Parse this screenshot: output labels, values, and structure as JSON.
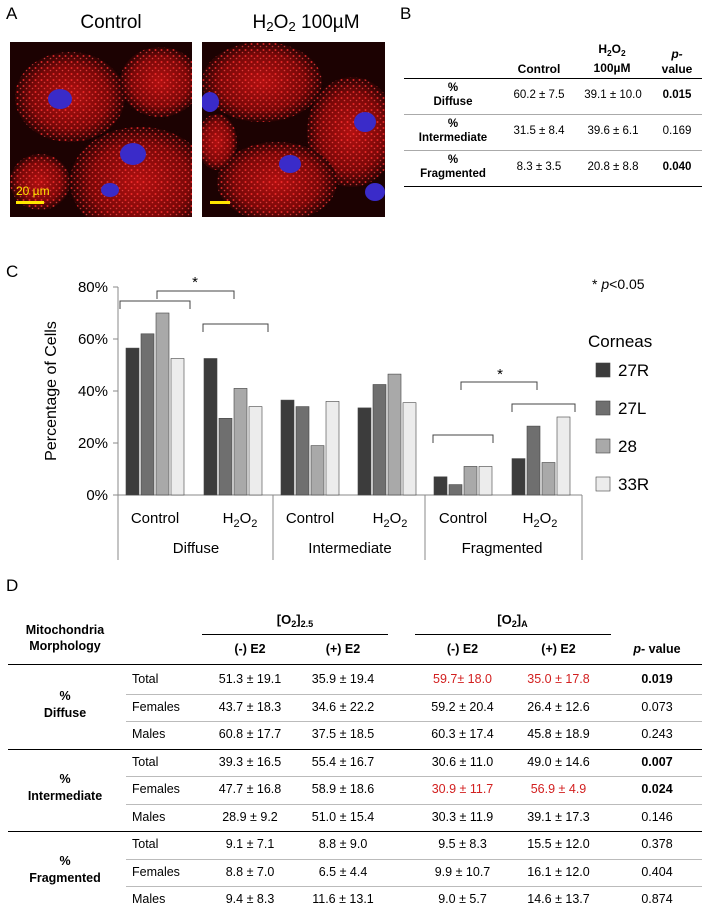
{
  "panelA": {
    "letter": "A",
    "control_title": "Control",
    "h2o2_title_main": "H",
    "h2o2_title_sub1": "2",
    "h2o2_title_o": "O",
    "h2o2_title_sub2": "2",
    "h2o2_title_conc": " 100µM",
    "scale_label": "20 µm"
  },
  "panelB": {
    "letter": "B",
    "headers": {
      "control": "Control",
      "h2o2_line1_H": "H",
      "h2o2_line1_sub": "2",
      "h2o2_line1_O": "O",
      "h2o2_line1_sub2": "2",
      "h2o2_line2": "100µM",
      "p_line1": "p-",
      "p_line2": "value"
    },
    "rows": [
      {
        "label1": "%",
        "label2": "Diffuse",
        "control": "60.2 ± 7.5",
        "h2o2": "39.1 ± 10.0",
        "p": "0.015"
      },
      {
        "label1": "%",
        "label2": "Intermediate",
        "control": "31.5 ± 8.4",
        "h2o2": "39.6 ± 6.1",
        "p": "0.169"
      },
      {
        "label1": "%",
        "label2": "Fragmented",
        "control": "8.3 ± 3.5",
        "h2o2": "20.8 ± 8.8",
        "p": "0.040"
      }
    ]
  },
  "panelC": {
    "letter": "C",
    "significance_note_star": "* ",
    "significance_note_p": "p",
    "significance_note_rest": "<0.05",
    "star": "*"
  },
  "chart_data": {
    "type": "bar",
    "ylabel": "Percentage of Cells",
    "ylim": [
      0,
      80
    ],
    "yticks": [
      "0%",
      "20%",
      "40%",
      "60%",
      "80%"
    ],
    "legend_title": "Corneas",
    "legend_placement": "right",
    "groups": [
      "Diffuse",
      "Intermediate",
      "Fragmented"
    ],
    "conditions": [
      "Control",
      "H2O2"
    ],
    "series": [
      {
        "name": "27R",
        "color": "#3c3c3c",
        "values": [
          56.5,
          52.5,
          36.5,
          33.5,
          7.0,
          14.0
        ]
      },
      {
        "name": "27L",
        "color": "#6f6f6f",
        "values": [
          62.0,
          29.5,
          34.0,
          42.5,
          4.0,
          26.5
        ]
      },
      {
        "name": "28",
        "color": "#a9a9a9",
        "values": [
          70.0,
          41.0,
          19.0,
          46.5,
          11.0,
          12.5
        ]
      },
      {
        "name": "33R",
        "color": "#ececec",
        "values": [
          52.5,
          34.0,
          36.0,
          35.5,
          11.0,
          30.0
        ]
      }
    ],
    "significance": [
      "Diffuse: Control vs H2O2",
      "Fragmented: Control vs H2O2"
    ]
  },
  "panelD": {
    "letter": "D",
    "header_label1": "Mitochondria",
    "header_label2": "Morphology",
    "o2_25_main": "[O",
    "o2_25_sub": "2",
    "o2_25_close": "]",
    "o2_25_subscript": "2.5",
    "o2_a_main": "[O",
    "o2_a_sub": "2",
    "o2_a_close": "]",
    "o2_a_subscript": "A",
    "col_neg": "(-) E2",
    "col_pos": "(+) E2",
    "p_italic": "p",
    "p_rest": "- value",
    "sections": [
      {
        "label1": "%",
        "label2": "Diffuse",
        "rows": [
          {
            "sub": "Total",
            "a": "51.3 ± 19.1",
            "b": "35.9 ± 19.4",
            "c": "59.7± 18.0",
            "d": "35.0 ± 17.8",
            "p": "0.019"
          },
          {
            "sub": "Females",
            "a": "43.7 ± 18.3",
            "b": "34.6 ± 22.2",
            "c": "59.2 ± 20.4",
            "d": "26.4 ± 12.6",
            "p": "0.073"
          },
          {
            "sub": "Males",
            "a": "60.8 ± 17.7",
            "b": "37.5 ± 18.5",
            "c": "60.3 ± 17.4",
            "d": "45.8 ± 18.9",
            "p": "0.243"
          }
        ]
      },
      {
        "label1": "%",
        "label2": "Intermediate",
        "rows": [
          {
            "sub": "Total",
            "a": "39.3 ± 16.5",
            "b": "55.4 ± 16.7",
            "c": "30.6 ± 11.0",
            "d": "49.0 ± 14.6",
            "p": "0.007"
          },
          {
            "sub": "Females",
            "a": "47.7 ± 16.8",
            "b": "58.9 ± 18.6",
            "c": "30.9 ± 11.7",
            "d": "56.9 ± 4.9",
            "p": "0.024"
          },
          {
            "sub": "Males",
            "a": "28.9 ± 9.2",
            "b": "51.0 ± 15.4",
            "c": "30.3 ± 11.9",
            "d": "39.1 ± 17.3",
            "p": "0.146"
          }
        ]
      },
      {
        "label1": "%",
        "label2": "Fragmented",
        "rows": [
          {
            "sub": "Total",
            "a": "9.1 ± 7.1",
            "b": "8.8 ± 9.0",
            "c": "9.5 ± 8.3",
            "d": "15.5 ± 12.0",
            "p": "0.378"
          },
          {
            "sub": "Females",
            "a": "8.8 ± 7.0",
            "b": "6.5 ± 4.4",
            "c": "9.9 ± 10.7",
            "d": "16.1 ± 12.0",
            "p": "0.404"
          },
          {
            "sub": "Males",
            "a": "9.4 ± 8.3",
            "b": "11.6 ± 13.1",
            "c": "9.0 ± 5.7",
            "d": "14.6 ± 13.7",
            "p": "0.874"
          }
        ]
      }
    ],
    "red_cells": [
      [
        0,
        0,
        "c"
      ],
      [
        0,
        0,
        "d"
      ],
      [
        1,
        1,
        "c"
      ],
      [
        1,
        1,
        "d"
      ]
    ],
    "bold_p": [
      [
        0,
        0
      ],
      [
        1,
        0
      ],
      [
        1,
        1
      ]
    ]
  }
}
